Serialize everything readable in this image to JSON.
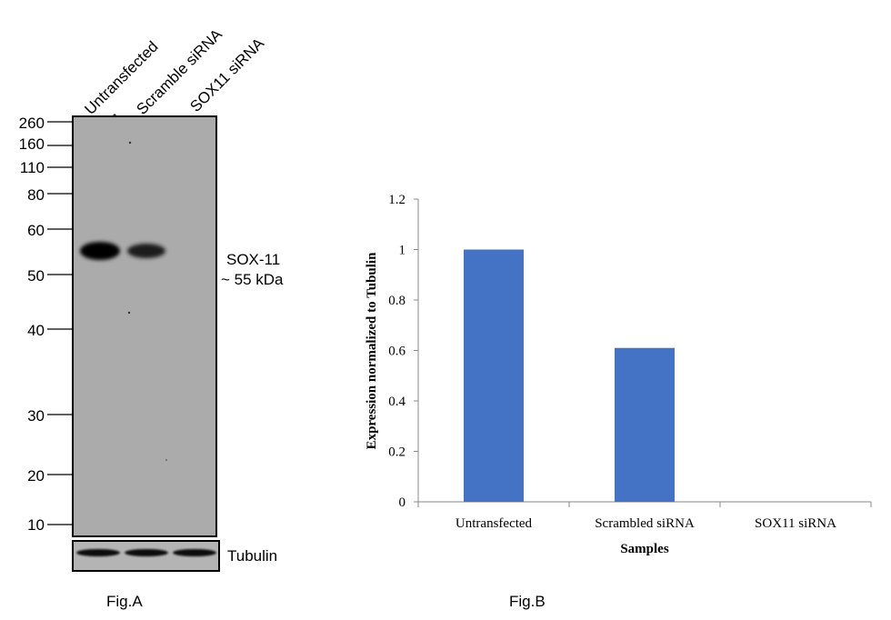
{
  "figure_a": {
    "caption": "Fig.A",
    "lanes": [
      "Untransfected",
      "Scramble siRNA",
      "SOX11 siRNA"
    ],
    "markers": [
      "260",
      "160",
      "110",
      "80",
      "60",
      "50",
      "40",
      "30",
      "20",
      "10"
    ],
    "band_label": "SOX-11",
    "band_size": "~ 55 kDa",
    "loading_control": "Tubulin",
    "band_intensity": [
      1.0,
      0.65,
      0.0
    ]
  },
  "figure_b": {
    "caption": "Fig.B"
  },
  "chart_data": {
    "type": "bar",
    "title": "",
    "categories": [
      "Untransfected",
      "Scrambled siRNA",
      "SOX11 siRNA"
    ],
    "values": [
      1.0,
      0.61,
      0.0
    ],
    "xlabel": "Samples",
    "ylabel": "Expression normalized to Tubulin",
    "ylim": [
      0,
      1.2
    ],
    "yticks": [
      "0",
      "0.2",
      "0.4",
      "0.6",
      "0.8",
      "1",
      "1.2"
    ],
    "grid": false,
    "legend": "none",
    "bar_color": "#4472C4"
  }
}
